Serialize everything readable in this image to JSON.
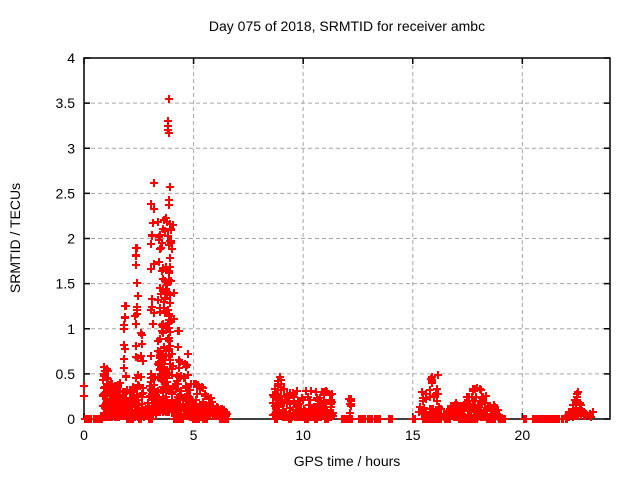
{
  "page": {
    "background": "#ffffff"
  },
  "chart_data": {
    "type": "scatter",
    "title": "Day 075 of 2018, SRMTID for receiver ambc",
    "xlabel": "GPS time / hours",
    "ylabel": "SRMTID / TECUs",
    "xlim": [
      0,
      24
    ],
    "ylim": [
      0,
      4
    ],
    "xticks": [
      0,
      5,
      10,
      15,
      20
    ],
    "yticks": [
      0,
      0.5,
      1,
      1.5,
      2,
      2.5,
      3,
      3.5,
      4
    ],
    "grid": true,
    "legend_position": "none",
    "series_name": "SRMTID",
    "marker": {
      "shape": "plus",
      "color": "#ff0000",
      "size": 9,
      "stroke_width": 2
    },
    "grid_color": "#a6a6a6",
    "border_color": "#000000",
    "text_color": "#000000",
    "seed": 20180075,
    "outlier_points": [
      [
        0.0,
        0.37
      ],
      [
        0.0,
        0.25
      ],
      [
        3.88,
        3.55
      ],
      [
        3.84,
        3.3
      ],
      [
        3.85,
        3.25
      ],
      [
        3.84,
        3.2
      ],
      [
        3.86,
        3.17
      ],
      [
        3.2,
        2.61
      ],
      [
        3.93,
        2.57
      ],
      [
        3.9,
        2.43
      ],
      [
        3.86,
        2.37
      ],
      [
        3.65,
        2.2
      ],
      [
        3.62,
        2.1
      ],
      [
        3.55,
        1.95
      ],
      [
        3.47,
        1.88
      ],
      [
        2.4,
        1.9
      ],
      [
        2.38,
        1.82
      ],
      [
        1.86,
        1.25
      ],
      [
        3.08,
        1.33
      ],
      [
        4.34,
        0.97
      ],
      [
        8.95,
        0.46
      ],
      [
        9.0,
        0.43
      ],
      [
        15.86,
        0.47
      ],
      [
        15.83,
        0.44
      ],
      [
        15.88,
        0.4
      ],
      [
        11.05,
        0.3
      ],
      [
        22.55,
        0.3
      ],
      [
        22.5,
        0.28
      ]
    ],
    "clusters": [
      {
        "x0": 0.84,
        "x1": 1.65,
        "n": 95,
        "ymin": 0.02,
        "ymax": 0.4,
        "k": 2.4,
        "shape": "flat"
      },
      {
        "x0": 0.86,
        "x1": 0.97,
        "n": 12,
        "ymin": 0.25,
        "ymax": 0.66,
        "k": 1.2,
        "shape": "flat"
      },
      {
        "x0": 1.02,
        "x1": 1.1,
        "n": 6,
        "ymin": 0.28,
        "ymax": 0.56,
        "k": 1.2,
        "shape": "flat"
      },
      {
        "x0": 1.7,
        "x1": 2.02,
        "n": 45,
        "ymin": 0.03,
        "ymax": 0.35,
        "k": 2.2,
        "shape": "flat"
      },
      {
        "x0": 1.82,
        "x1": 1.95,
        "n": 11,
        "ymin": 0.4,
        "ymax": 1.27,
        "k": 1.1,
        "shape": "flat"
      },
      {
        "x0": 2.05,
        "x1": 2.75,
        "n": 75,
        "ymin": 0.02,
        "ymax": 0.4,
        "k": 2.4,
        "shape": "flat"
      },
      {
        "x0": 2.33,
        "x1": 2.46,
        "n": 15,
        "ymin": 0.45,
        "ymax": 1.92,
        "k": 1.2,
        "shape": "flat"
      },
      {
        "x0": 2.58,
        "x1": 2.72,
        "n": 6,
        "ymin": 0.4,
        "ymax": 0.95,
        "k": 1.2,
        "shape": "flat"
      },
      {
        "x0": 2.9,
        "x1": 3.3,
        "n": 50,
        "ymin": 0.04,
        "ymax": 0.5,
        "k": 2.2,
        "shape": "flat"
      },
      {
        "x0": 3.02,
        "x1": 3.22,
        "n": 13,
        "ymin": 0.55,
        "ymax": 2.45,
        "k": 1.1,
        "shape": "flat"
      },
      {
        "x0": 3.35,
        "x1": 4.1,
        "n": 140,
        "ymin": 0.08,
        "ymax": 2.3,
        "k": 2.6,
        "shape": "flat"
      },
      {
        "x0": 3.45,
        "x1": 3.75,
        "n": 25,
        "ymin": 0.35,
        "ymax": 1.7,
        "k": 1.0,
        "shape": "flat"
      },
      {
        "x0": 3.78,
        "x1": 4.02,
        "n": 18,
        "ymin": 0.8,
        "ymax": 2.2,
        "k": 1.0,
        "shape": "flat"
      },
      {
        "x0": 4.12,
        "x1": 4.78,
        "n": 65,
        "ymin": 0.03,
        "ymax": 0.5,
        "k": 2.4,
        "shape": "flat"
      },
      {
        "x0": 4.28,
        "x1": 4.38,
        "n": 6,
        "ymin": 0.45,
        "ymax": 0.98,
        "k": 1.2,
        "shape": "flat"
      },
      {
        "x0": 4.6,
        "x1": 4.76,
        "n": 5,
        "ymin": 0.4,
        "ymax": 0.88,
        "k": 1.2,
        "shape": "flat"
      },
      {
        "x0": 4.8,
        "x1": 5.45,
        "n": 70,
        "ymin": 0.02,
        "ymax": 0.45,
        "k": 2.6,
        "shape": "flat"
      },
      {
        "x0": 5.48,
        "x1": 6.55,
        "n": 60,
        "ymin": 0.03,
        "ymax": 0.3,
        "k": 2.2,
        "shape": "fall"
      },
      {
        "x0": 8.6,
        "x1": 9.18,
        "n": 45,
        "ymin": 0.04,
        "ymax": 0.46,
        "k": 1.8,
        "shape": "flat"
      },
      {
        "x0": 9.05,
        "x1": 11.36,
        "n": 170,
        "ymin": 0.02,
        "ymax": 0.33,
        "k": 2.4,
        "shape": "flat"
      },
      {
        "x0": 12.1,
        "x1": 12.2,
        "n": 8,
        "ymin": 0.04,
        "ymax": 0.28,
        "k": 1.2,
        "shape": "flat"
      },
      {
        "x0": 15.3,
        "x1": 15.62,
        "n": 14,
        "ymin": 0.05,
        "ymax": 0.33,
        "k": 1.5,
        "shape": "flat"
      },
      {
        "x0": 15.7,
        "x1": 16.28,
        "n": 28,
        "ymin": 0.04,
        "ymax": 0.5,
        "k": 1.7,
        "shape": "flat"
      },
      {
        "x0": 16.4,
        "x1": 18.0,
        "n": 90,
        "ymin": 0.02,
        "ymax": 0.38,
        "k": 2.2,
        "shape": "rise"
      },
      {
        "x0": 18.0,
        "x1": 18.92,
        "n": 50,
        "ymin": 0.02,
        "ymax": 0.38,
        "k": 2.2,
        "shape": "fall"
      },
      {
        "x0": 22.1,
        "x1": 22.62,
        "n": 30,
        "ymin": 0.02,
        "ymax": 0.32,
        "k": 1.3,
        "shape": "rise"
      },
      {
        "x0": 22.6,
        "x1": 22.92,
        "n": 14,
        "ymin": 0.02,
        "ymax": 0.2,
        "k": 1.6,
        "shape": "fall"
      },
      {
        "x0": 23.0,
        "x1": 23.22,
        "n": 5,
        "ymin": 0.02,
        "ymax": 0.08,
        "k": 1.5,
        "shape": "flat"
      }
    ],
    "zero_value_segments": [
      [
        0.05,
        0.33
      ],
      [
        0.45,
        0.8
      ],
      [
        1.95,
        2.25
      ],
      [
        2.52,
        2.62
      ],
      [
        2.98,
        3.1
      ],
      [
        4.1,
        4.5
      ],
      [
        4.97,
        5.25
      ],
      [
        5.45,
        5.6
      ],
      [
        6.2,
        6.32
      ],
      [
        6.42,
        6.55
      ],
      [
        8.7,
        8.82
      ],
      [
        9.35,
        9.45
      ],
      [
        10.1,
        10.22
      ],
      [
        10.55,
        10.65
      ],
      [
        11.0,
        11.12
      ],
      [
        11.78,
        11.98
      ],
      [
        12.1,
        12.22
      ],
      [
        12.55,
        12.8
      ],
      [
        12.95,
        13.15
      ],
      [
        13.28,
        13.52
      ],
      [
        13.9,
        14.06
      ],
      [
        15.0,
        15.12
      ],
      [
        15.45,
        16.3
      ],
      [
        16.45,
        16.72
      ],
      [
        17.1,
        17.92
      ],
      [
        18.4,
        18.76
      ],
      [
        18.95,
        19.06
      ],
      [
        19.15,
        19.22
      ],
      [
        20.08,
        20.16
      ],
      [
        20.5,
        21.66
      ],
      [
        21.8,
        21.86
      ],
      [
        21.98,
        22.04
      ]
    ]
  }
}
